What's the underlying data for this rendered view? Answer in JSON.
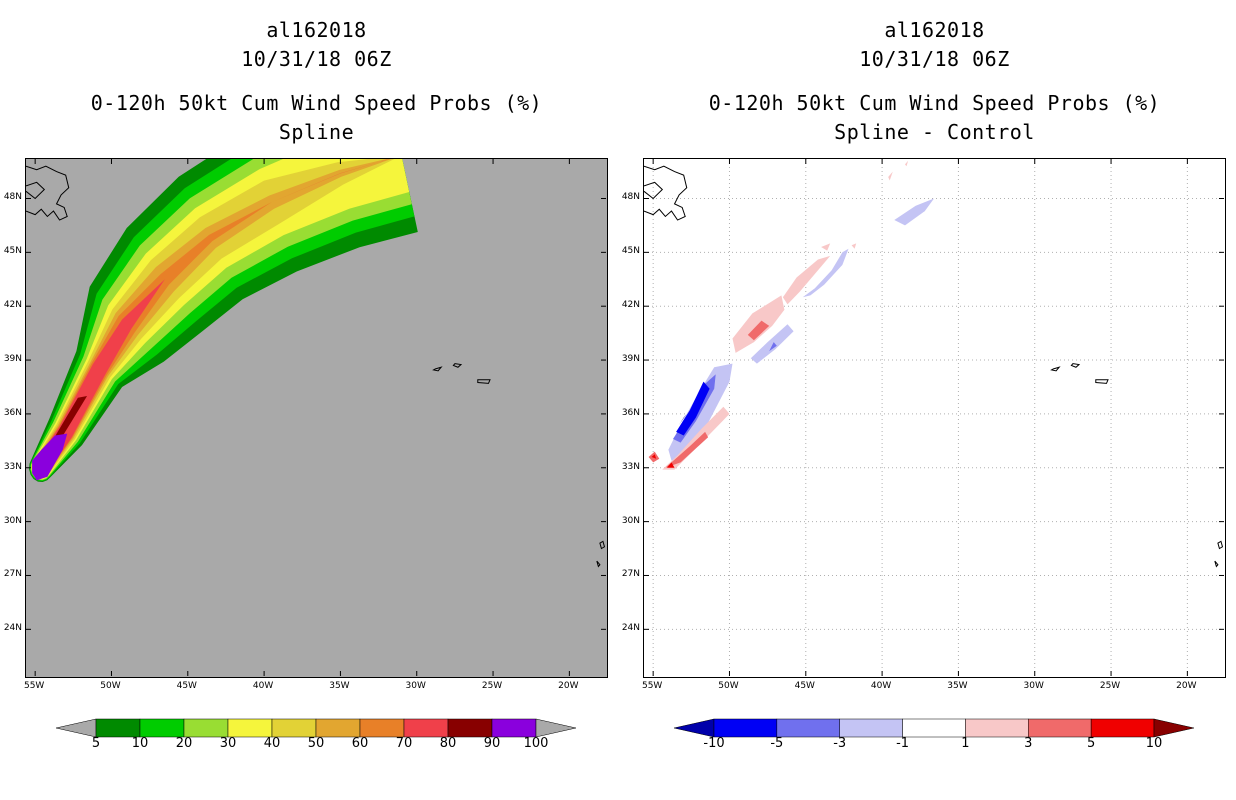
{
  "left_panel": {
    "title_lines": [
      "al162018",
      "10/31/18 06Z",
      "0-120h 50kt Cum Wind Speed Probs (%)",
      "Spline"
    ]
  },
  "right_panel": {
    "title_lines": [
      "al162018",
      "10/31/18 06Z",
      "0-120h 50kt Cum Wind Speed Probs (%)",
      "Spline - Control"
    ]
  },
  "chart_data": [
    {
      "type": "heatmap",
      "title": "0-120h 50kt Cum Wind Speed Probs (%)",
      "subtitle": "Spline",
      "storm_id": "al162018",
      "init_time": "10/31/18 06Z",
      "x_ticks": [
        "55W",
        "50W",
        "45W",
        "40W",
        "35W",
        "30W",
        "25W",
        "20W"
      ],
      "y_ticks": [
        "24N",
        "27N",
        "30N",
        "33N",
        "36N",
        "39N",
        "42N",
        "45N",
        "48N"
      ],
      "xlim": [
        -55.6,
        -17.6
      ],
      "ylim": [
        21.4,
        50.2
      ],
      "background_color": "#a9a9a9",
      "grid": false,
      "colorbar": {
        "levels": [
          "5",
          "10",
          "20",
          "30",
          "40",
          "50",
          "60",
          "70",
          "80",
          "90",
          "100"
        ],
        "colors": [
          "#008a00",
          "#00cc00",
          "#99dd33",
          "#f5f53c",
          "#e2d236",
          "#e2a630",
          "#e88028",
          "#f0404a",
          "#880000",
          "#8a00dd"
        ]
      },
      "track_centerline": [
        [
          -54.6,
          33.0
        ],
        [
          -53.0,
          35.0
        ],
        [
          -50.8,
          38.5
        ],
        [
          -49.0,
          41.0
        ],
        [
          -46.5,
          43.5
        ],
        [
          -43.5,
          45.8
        ],
        [
          -39.5,
          47.8
        ],
        [
          -35.0,
          49.4
        ],
        [
          -31.0,
          50.4
        ]
      ],
      "probability_bands": [
        {
          "level": 5,
          "half_width_deg": [
            0.8,
            1.8,
            3.2,
            3.8,
            4.2,
            4.4
          ]
        },
        {
          "level": 10,
          "half_width_deg": [
            0.75,
            1.5,
            2.6,
            3.1,
            3.4,
            3.5
          ]
        },
        {
          "level": 20,
          "half_width_deg": [
            0.7,
            1.25,
            2.1,
            2.5,
            2.7,
            2.8
          ]
        },
        {
          "level": 30,
          "half_width_deg": [
            0.65,
            1.0,
            1.6,
            1.9,
            2.0,
            2.1
          ]
        },
        {
          "level": 40,
          "half_width_deg": [
            0.6,
            0.85,
            1.25,
            1.4,
            1.3,
            0
          ]
        },
        {
          "level": 50,
          "half_width_deg": [
            0.55,
            0.7,
            0.95,
            0.9,
            0.4,
            0
          ]
        },
        {
          "level": 60,
          "half_width_deg": [
            0.5,
            0.6,
            0.7,
            0.4,
            0,
            0
          ]
        },
        {
          "level": 70,
          "half_width_deg": [
            0.5,
            0.5,
            0.4,
            0,
            0,
            0
          ]
        }
      ]
    },
    {
      "type": "heatmap",
      "title": "0-120h 50kt Cum Wind Speed Probs (%)",
      "subtitle": "Spline - Control",
      "storm_id": "al162018",
      "init_time": "10/31/18 06Z",
      "x_ticks": [
        "55W",
        "50W",
        "45W",
        "40W",
        "35W",
        "30W",
        "25W",
        "20W"
      ],
      "y_ticks": [
        "24N",
        "27N",
        "30N",
        "33N",
        "36N",
        "39N",
        "42N",
        "45N",
        "48N"
      ],
      "xlim": [
        -55.6,
        -17.6
      ],
      "ylim": [
        21.4,
        50.2
      ],
      "background_color": "#ffffff",
      "grid": true,
      "colorbar": {
        "levels": [
          "-10",
          "-5",
          "-3",
          "-1",
          "1",
          "3",
          "5",
          "10"
        ],
        "colors": [
          "#0000aa",
          "#0000f5",
          "#7070ee",
          "#c4c4f4",
          "#ffffff",
          "#f8c8c8",
          "#f06a6a",
          "#f00000",
          "#880000"
        ]
      },
      "difference_areas": [
        {
          "sign": "negative",
          "peak": "<-10",
          "center": [
            -52.5,
            36.0
          ],
          "extent": "54W-50W, 34N-38.5N"
        },
        {
          "sign": "positive",
          "peak": ">5",
          "center": [
            -52.5,
            34.0
          ],
          "extent": "54W-50W, 33N-36N"
        },
        {
          "sign": "positive",
          "peak": ">5",
          "center": [
            -55.0,
            33.5
          ]
        },
        {
          "sign": "positive",
          "peak": "3-5",
          "center": [
            -48.0,
            41.0
          ],
          "extent": "49.5W-46W, 39.5N-42.5N"
        },
        {
          "sign": "negative",
          "peak": "-3 to -5",
          "center": [
            -47.0,
            39.8
          ]
        },
        {
          "sign": "positive",
          "peak": "1-3",
          "center": [
            -45.0,
            43.5
          ],
          "extent": "47W-42W, 42N-45.5N"
        },
        {
          "sign": "negative",
          "peak": "-1 to -3",
          "center": [
            -43.5,
            43.8
          ],
          "extent": "45W-42W, 42.5N-45N"
        },
        {
          "sign": "negative",
          "peak": "-1 to -3",
          "center": [
            -38.0,
            47.8
          ]
        },
        {
          "sign": "positive",
          "peak": "1-3",
          "center": [
            -38.8,
            49.5
          ]
        }
      ]
    }
  ]
}
